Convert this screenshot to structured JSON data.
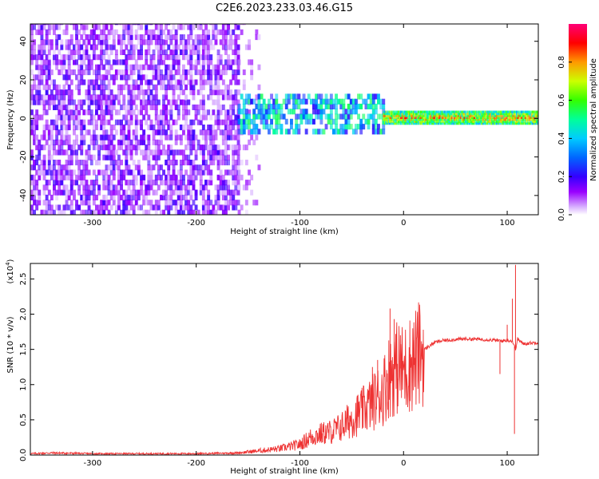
{
  "title": "C2E6.2023.233.03.46.G15",
  "chart_data": [
    {
      "type": "heatmap",
      "xlabel": "Height of straight line (km)",
      "ylabel": "Frequency (Hz)",
      "xlim": [
        -360,
        130
      ],
      "ylim": [
        -50,
        49
      ],
      "xticks": [
        -300,
        -200,
        -100,
        0,
        100
      ],
      "yticks": [
        -40,
        -20,
        0,
        20,
        40
      ],
      "colorbar": {
        "label": "Normalized spectral amplitude",
        "range": [
          0,
          1
        ],
        "ticks": [
          0.0,
          0.2,
          0.4,
          0.6,
          0.8
        ]
      },
      "regions": [
        {
          "x_range": [
            -360,
            -160
          ],
          "freq_range": [
            -50,
            49
          ],
          "amplitude": [
            0.03,
            0.2
          ]
        },
        {
          "x_range": [
            -160,
            -140
          ],
          "freq_range": [
            -50,
            49
          ],
          "amplitude": [
            0.02,
            0.1
          ]
        },
        {
          "x_range": [
            -160,
            -20
          ],
          "freq_range": [
            -8,
            12
          ],
          "amplitude": [
            0.2,
            0.55
          ]
        },
        {
          "x_range": [
            -20,
            130
          ],
          "freq_range": [
            -3,
            4
          ],
          "amplitude": [
            0.5,
            0.95
          ]
        }
      ]
    },
    {
      "type": "line",
      "xlabel": "Height of straight line (km)",
      "ylabel": "SNR (10 * v/v)",
      "yscale_label": "(x10",
      "yscale_exp": "4",
      "yscale_close": ")",
      "xlim": [
        -360,
        130
      ],
      "ylim": [
        0,
        2.72
      ],
      "xticks": [
        -300,
        -200,
        -100,
        0,
        100
      ],
      "yticks": [
        0.0,
        0.5,
        1.0,
        1.5,
        2.0,
        2.5
      ],
      "color": "#ee3333",
      "series": [
        {
          "x": [
            -360,
            -340,
            -300,
            -250,
            -200,
            -160,
            -140,
            -120,
            -100,
            -90,
            -80,
            -70,
            -60,
            -50,
            -40,
            -30,
            -20,
            -15,
            -10,
            -5,
            0,
            10,
            20,
            30,
            40,
            60,
            80,
            95,
            100,
            105,
            108,
            110,
            115,
            130
          ],
          "y": [
            0.02,
            0.03,
            0.02,
            0.02,
            0.02,
            0.03,
            0.06,
            0.09,
            0.15,
            0.25,
            0.3,
            0.33,
            0.4,
            0.52,
            0.62,
            0.75,
            0.9,
            1.1,
            1.2,
            1.25,
            1.2,
            1.35,
            1.5,
            1.6,
            1.63,
            1.65,
            1.64,
            1.62,
            1.63,
            1.62,
            1.5,
            1.65,
            1.58,
            1.6
          ]
        }
      ],
      "spikes": [
        {
          "x": -13,
          "y": 2.08
        },
        {
          "x": -9,
          "y": 1.93
        },
        {
          "x": -25,
          "y": 1.35
        },
        {
          "x": -30,
          "y": 1.25
        },
        {
          "x": -3,
          "y": 1.7
        },
        {
          "x": 10,
          "y": 1.63
        },
        {
          "x": 93,
          "y": 1.15
        },
        {
          "x": 100,
          "y": 1.85
        },
        {
          "x": 105,
          "y": 2.22
        },
        {
          "x": 108,
          "y": 2.7
        },
        {
          "x": 107,
          "y": 0.3
        }
      ]
    }
  ]
}
